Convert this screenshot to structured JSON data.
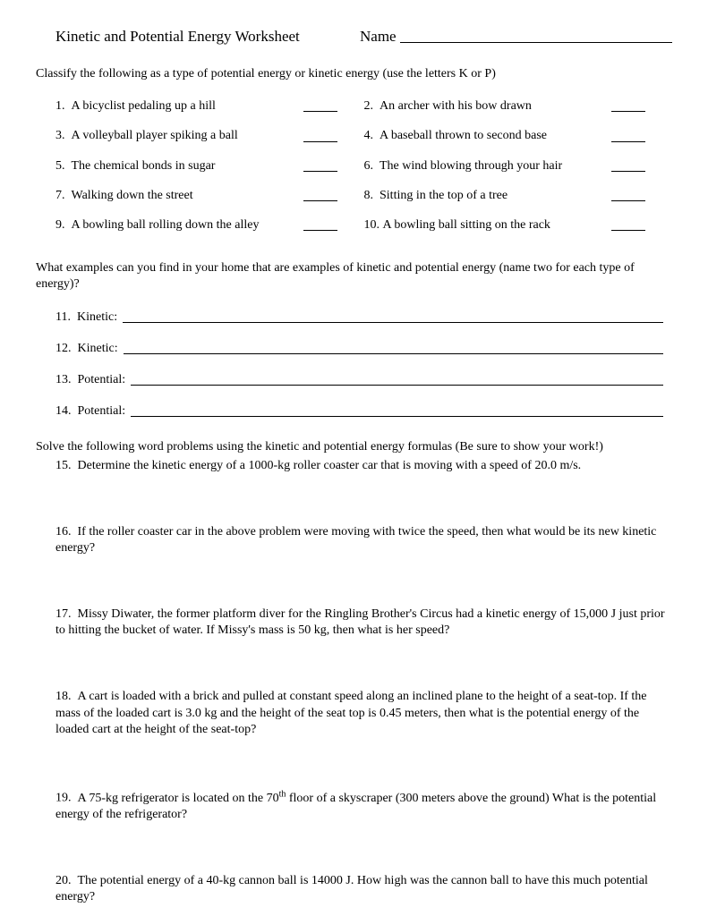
{
  "header": {
    "title": "Kinetic and Potential Energy Worksheet",
    "name_label": "Name"
  },
  "section1": {
    "instruction": "Classify the following as a type of potential energy or kinetic energy (use the letters K or P)",
    "items": [
      {
        "n": "1.",
        "text": "A bicyclist pedaling up a hill"
      },
      {
        "n": "2.",
        "text": "An archer with his bow drawn"
      },
      {
        "n": "3.",
        "text": "A volleyball player spiking a ball"
      },
      {
        "n": "4.",
        "text": "A baseball thrown to second base"
      },
      {
        "n": "5.",
        "text": "The chemical bonds in sugar"
      },
      {
        "n": "6.",
        "text": "The wind blowing through your hair"
      },
      {
        "n": "7.",
        "text": "Walking down the street"
      },
      {
        "n": "8.",
        "text": "Sitting in the top of a tree"
      },
      {
        "n": "9.",
        "text": "A bowling ball rolling down the alley"
      },
      {
        "n": "10.",
        "text": "A bowling ball sitting on the rack"
      }
    ]
  },
  "section2": {
    "instruction": "What examples can you find in your home that are examples of kinetic and potential energy (name two for each type of energy)?",
    "items": [
      {
        "n": "11.",
        "label": "Kinetic:"
      },
      {
        "n": "12.",
        "label": "Kinetic:"
      },
      {
        "n": "13.",
        "label": "Potential:"
      },
      {
        "n": "14.",
        "label": "Potential:"
      }
    ]
  },
  "section3": {
    "instruction": "Solve the following word problems using the kinetic and potential energy formulas (Be sure to show your work!)",
    "items": [
      {
        "n": "15.",
        "text": "Determine the kinetic energy of a 1000-kg roller coaster car that is moving with a speed of 20.0 m/s."
      },
      {
        "n": "16.",
        "text": "If the roller coaster car in the above problem were moving with twice the speed, then what would be its new kinetic energy?"
      },
      {
        "n": "17.",
        "text": "Missy Diwater, the former platform diver for the Ringling Brother's Circus had a kinetic energy of 15,000 J just prior to hitting the bucket of water. If Missy's mass is 50 kg, then what is her speed?"
      },
      {
        "n": "18.",
        "text": "A cart is loaded with a brick and pulled at constant speed along an inclined plane to the height of a seat-top. If the mass of the loaded cart is 3.0 kg and the height of the seat top is 0.45 meters, then what is the potential energy of the loaded cart at the height of the seat-top?"
      },
      {
        "n": "19.",
        "text_html": "A 75-kg refrigerator is located on the 70<sup>th</sup> floor of a skyscraper (300 meters above the ground)  What is the potential energy of the refrigerator?"
      },
      {
        "n": "20.",
        "text": "The potential energy of a 40-kg cannon ball is 14000 J.  How high was the cannon ball to have this much potential energy?"
      }
    ]
  }
}
